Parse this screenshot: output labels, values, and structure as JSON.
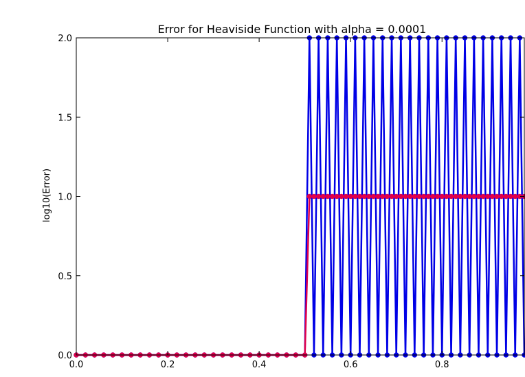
{
  "chart_data": {
    "type": "line",
    "title": "Error for Heaviside Function with alpha = 0.0001",
    "xlabel": "",
    "ylabel": "log10(Error)",
    "xlim": [
      0.0,
      0.98
    ],
    "ylim": [
      0.0,
      2.0
    ],
    "x_ticks": [
      0.0,
      0.2,
      0.4,
      0.6,
      0.8
    ],
    "x_tick_labels": [
      "0.0",
      "0.2",
      "0.4",
      "0.6",
      "0.8"
    ],
    "y_ticks": [
      0.0,
      0.5,
      1.0,
      1.5,
      2.0
    ],
    "y_tick_labels": [
      "0.0",
      "0.5",
      "1.0",
      "1.5",
      "2.0"
    ],
    "grid": false,
    "series": [
      {
        "color": "#e0004c",
        "marker": "circle",
        "x": [
          0.0,
          0.02,
          0.04,
          0.06,
          0.08,
          0.1,
          0.12,
          0.14,
          0.16,
          0.18,
          0.2,
          0.22,
          0.24,
          0.26,
          0.28,
          0.3,
          0.32,
          0.34,
          0.36,
          0.38,
          0.4,
          0.42,
          0.44,
          0.46,
          0.48,
          0.5,
          0.51,
          0.52,
          0.53,
          0.54,
          0.55,
          0.56,
          0.57,
          0.58,
          0.59,
          0.6,
          0.61,
          0.62,
          0.63,
          0.64,
          0.65,
          0.66,
          0.67,
          0.68,
          0.69,
          0.7,
          0.71,
          0.72,
          0.73,
          0.74,
          0.75,
          0.76,
          0.77,
          0.78,
          0.79,
          0.8,
          0.81,
          0.82,
          0.83,
          0.84,
          0.85,
          0.86,
          0.87,
          0.88,
          0.89,
          0.9,
          0.91,
          0.92,
          0.93,
          0.94,
          0.95,
          0.96,
          0.97,
          0.98
        ],
        "y": [
          0.0,
          0.0,
          0.0,
          0.0,
          0.0,
          0.0,
          0.0,
          0.0,
          0.0,
          0.0,
          0.0,
          0.0,
          0.0,
          0.0,
          0.0,
          0.0,
          0.0,
          0.0,
          0.0,
          0.0,
          0.0,
          0.0,
          0.0,
          0.0,
          0.0,
          0.0,
          1.0,
          1.0,
          1.0,
          1.0,
          1.0,
          1.0,
          1.0,
          1.0,
          1.0,
          1.0,
          1.0,
          1.0,
          1.0,
          1.0,
          1.0,
          1.0,
          1.0,
          1.0,
          1.0,
          1.0,
          1.0,
          1.0,
          1.0,
          1.0,
          1.0,
          1.0,
          1.0,
          1.0,
          1.0,
          1.0,
          1.0,
          1.0,
          1.0,
          1.0,
          1.0,
          1.0,
          1.0,
          1.0,
          1.0,
          1.0,
          1.0,
          1.0,
          1.0,
          1.0,
          1.0,
          1.0,
          1.0,
          1.0
        ]
      },
      {
        "color": "#0000e6",
        "marker": "circle",
        "x": [
          0.0,
          0.02,
          0.04,
          0.06,
          0.08,
          0.1,
          0.12,
          0.14,
          0.16,
          0.18,
          0.2,
          0.22,
          0.24,
          0.26,
          0.28,
          0.3,
          0.32,
          0.34,
          0.36,
          0.38,
          0.4,
          0.42,
          0.44,
          0.46,
          0.48,
          0.5,
          0.51,
          0.52,
          0.53,
          0.54,
          0.55,
          0.56,
          0.57,
          0.58,
          0.59,
          0.6,
          0.61,
          0.62,
          0.63,
          0.64,
          0.65,
          0.66,
          0.67,
          0.68,
          0.69,
          0.7,
          0.71,
          0.72,
          0.73,
          0.74,
          0.75,
          0.76,
          0.77,
          0.78,
          0.79,
          0.8,
          0.81,
          0.82,
          0.83,
          0.84,
          0.85,
          0.86,
          0.87,
          0.88,
          0.89,
          0.9,
          0.91,
          0.92,
          0.93,
          0.94,
          0.95,
          0.96,
          0.97,
          0.98
        ],
        "y": [
          0.0,
          0.0,
          0.0,
          0.0,
          0.0,
          0.0,
          0.0,
          0.0,
          0.0,
          0.0,
          0.0,
          0.0,
          0.0,
          0.0,
          0.0,
          0.0,
          0.0,
          0.0,
          0.0,
          0.0,
          0.0,
          0.0,
          0.0,
          0.0,
          0.0,
          0.0,
          2.0,
          0.0,
          2.0,
          0.0,
          2.0,
          0.0,
          2.0,
          0.0,
          2.0,
          0.0,
          2.0,
          0.0,
          2.0,
          0.0,
          2.0,
          0.0,
          2.0,
          0.0,
          2.0,
          0.0,
          2.0,
          0.0,
          2.0,
          0.0,
          2.0,
          0.0,
          2.0,
          0.0,
          2.0,
          0.0,
          2.0,
          0.0,
          2.0,
          0.0,
          2.0,
          0.0,
          2.0,
          0.0,
          2.0,
          0.0,
          2.0,
          0.0,
          2.0,
          0.0,
          2.0,
          0.0,
          2.0,
          0.0
        ]
      }
    ]
  }
}
